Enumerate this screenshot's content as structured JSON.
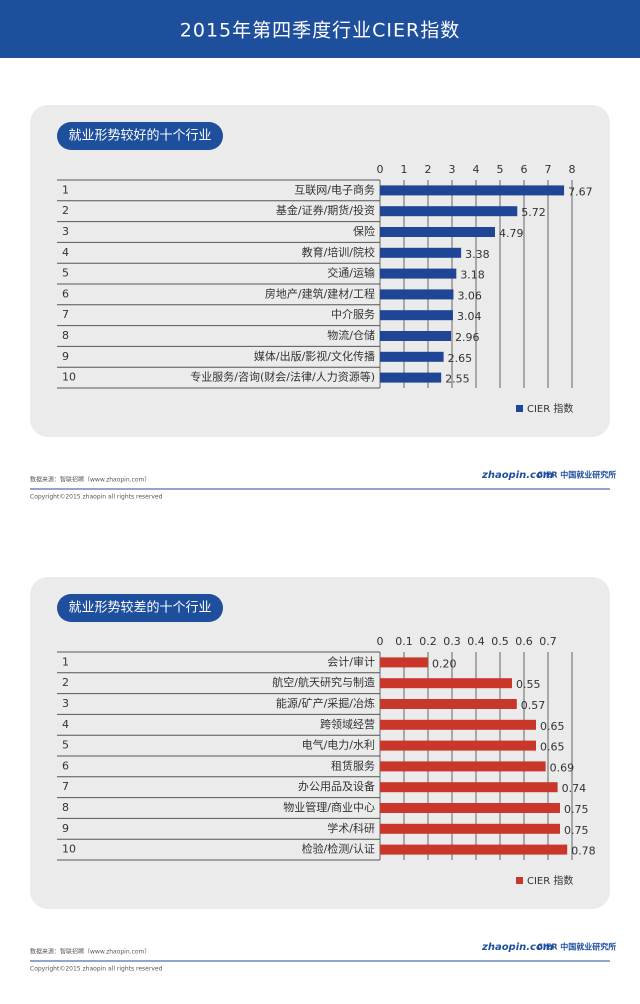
{
  "header": {
    "title": "2015年第四季度行业CIER指数"
  },
  "footer": {
    "source": "数据来源：智联招聘（www.zhaopin.com）",
    "copyright": "Copyright©2015 zhaopin all rights reserved",
    "logo_zhaopin": "zhaopin.com",
    "logo_cier": "CIER 中国就业研究所"
  },
  "chart_data": [
    {
      "type": "bar",
      "orientation": "horizontal",
      "title": "就业形势较好的十个行业",
      "ranks": [
        1,
        2,
        3,
        4,
        5,
        6,
        7,
        8,
        9,
        10
      ],
      "categories": [
        "互联网/电子商务",
        "基金/证券/期货/投资",
        "保险",
        "教育/培训/院校",
        "交通/运输",
        "房地产/建筑/建材/工程",
        "中介服务",
        "物流/仓储",
        "媒体/出版/影视/文化传播",
        "专业服务/咨询(财会/法律/人力资源等)"
      ],
      "series": [
        {
          "name": "CIER 指数",
          "color": "#1f4597",
          "values": [
            7.67,
            5.72,
            4.79,
            3.38,
            3.18,
            3.06,
            3.04,
            2.96,
            2.65,
            2.55
          ]
        }
      ],
      "xlim": [
        0,
        8
      ],
      "xticks": [
        0,
        1,
        2,
        3,
        4,
        5,
        6,
        7,
        8
      ],
      "grid": true,
      "legend": "bottom-right"
    },
    {
      "type": "bar",
      "orientation": "horizontal",
      "title": "就业形势较差的十个行业",
      "ranks": [
        1,
        2,
        3,
        4,
        5,
        6,
        7,
        8,
        9,
        10
      ],
      "categories": [
        "会计/审计",
        "航空/航天研究与制造",
        "能源/矿产/采掘/冶炼",
        "跨领域经营",
        "电气/电力/水利",
        "租赁服务",
        "办公用品及设备",
        "物业管理/商业中心",
        "学术/科研",
        "检验/检测/认证"
      ],
      "series": [
        {
          "name": "CIER 指数",
          "color": "#c9372a",
          "values": [
            0.2,
            0.55,
            0.57,
            0.65,
            0.65,
            0.69,
            0.74,
            0.75,
            0.75,
            0.78
          ],
          "value_labels": [
            "0.20",
            "0.55",
            "0.57",
            "0.65",
            "0.65",
            "0.69",
            "0.74",
            "0.75",
            "0.75",
            "0.78"
          ]
        }
      ],
      "xlim": [
        0,
        0.8
      ],
      "xticks": [
        0,
        0.1,
        0.2,
        0.3,
        0.4,
        0.5,
        0.6,
        0.7
      ],
      "grid": true,
      "legend": "bottom-right"
    }
  ]
}
